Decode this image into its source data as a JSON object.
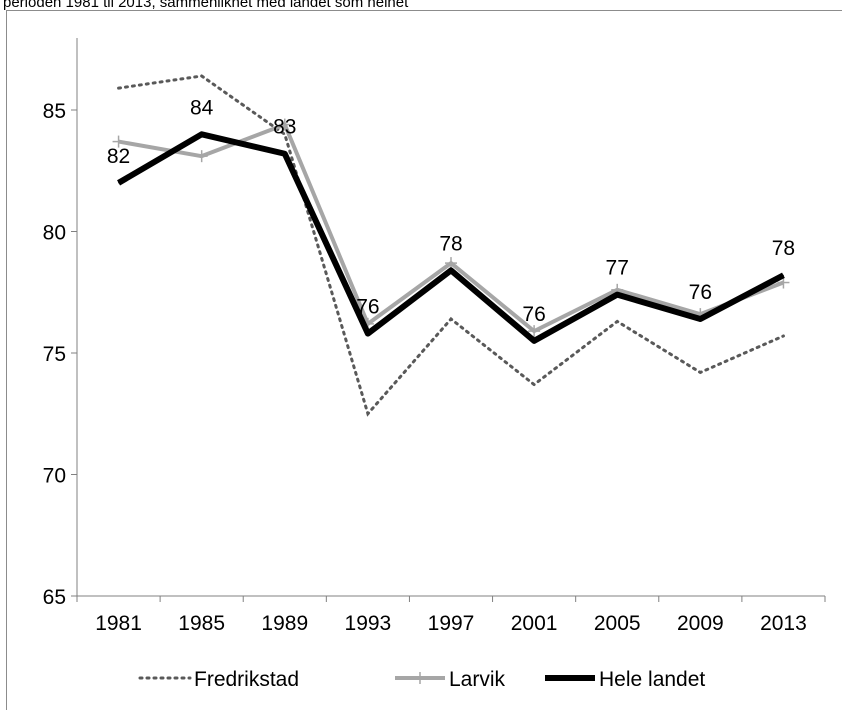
{
  "title": "perioden 1981 til 2013, sammenliknet med landet som helhet",
  "chart_data": {
    "type": "line",
    "title": "perioden 1981 til 2013, sammenliknet med landet som helhet",
    "xlabel": "",
    "ylabel": "",
    "categories": [
      "1981",
      "1985",
      "1989",
      "1993",
      "1997",
      "2001",
      "2005",
      "2009",
      "2013"
    ],
    "ylim": [
      65,
      87
    ],
    "yticks": [
      65,
      70,
      75,
      80,
      85
    ],
    "grid": false,
    "legend_position": "bottom",
    "series": [
      {
        "name": "Fredrikstad",
        "values": [
          85.9,
          86.4,
          84.0,
          72.5,
          76.4,
          73.7,
          76.3,
          74.2,
          75.7
        ],
        "color": "#595959",
        "style": "dotted"
      },
      {
        "name": "Larvik",
        "values": [
          83.7,
          83.1,
          84.4,
          76.2,
          78.7,
          75.9,
          77.6,
          76.6,
          77.9
        ],
        "color": "#a6a6a6",
        "style": "solid-plus-markers"
      },
      {
        "name": "Hele landet",
        "values": [
          82.0,
          84.0,
          83.2,
          75.8,
          78.4,
          75.5,
          77.4,
          76.4,
          78.2
        ],
        "color": "#000000",
        "style": "thick-solid"
      }
    ],
    "data_labels": [
      "82",
      "84",
      "83",
      "76",
      "78",
      "76",
      "77",
      "76",
      "78"
    ],
    "data_labels_series": "Hele landet"
  }
}
